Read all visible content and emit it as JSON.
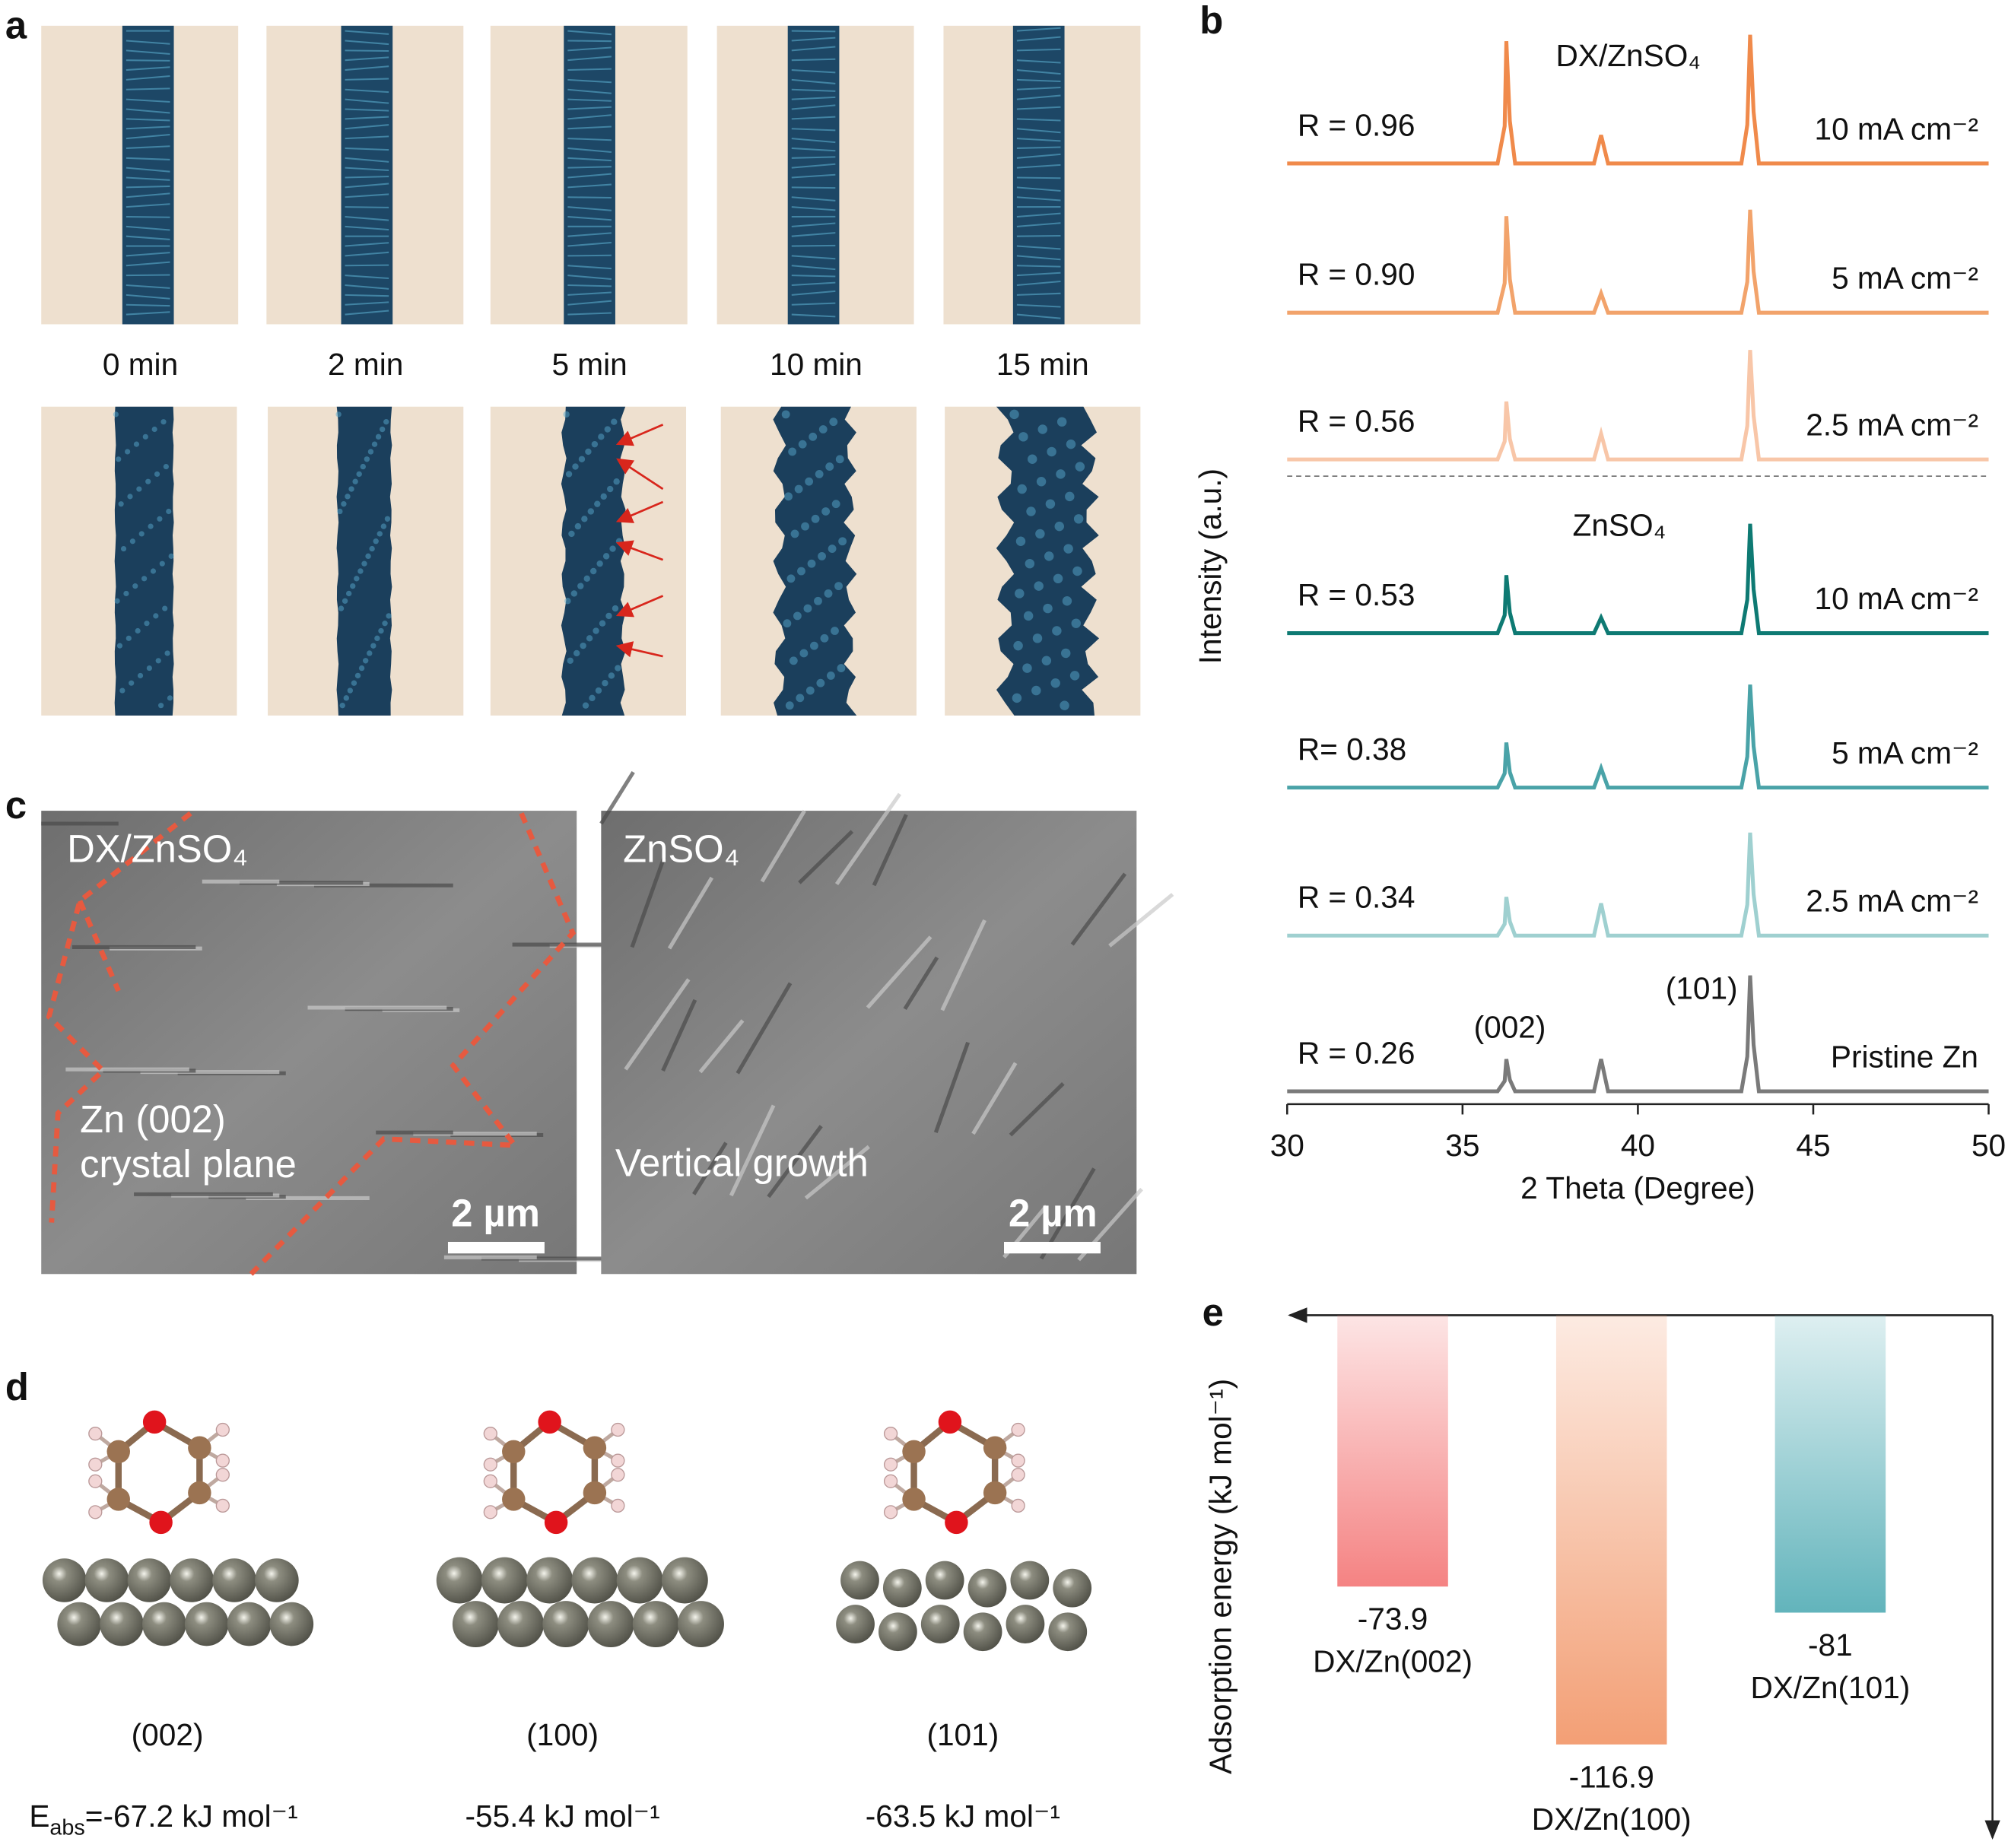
{
  "panels": {
    "a": {
      "label": "a",
      "times": [
        "0 min",
        "2 min",
        "5 min",
        "10 min",
        "15 min"
      ]
    },
    "c": {
      "label": "c",
      "left_electrolyte": "DX/ZnSO₄",
      "left_note": [
        "Zn (002)",
        "crystal plane"
      ],
      "right_electrolyte": "ZnSO₄",
      "right_note": "Vertical growth",
      "scale_bar": "2 µm"
    },
    "d": {
      "label": "d",
      "facets": [
        "(002)",
        "(100)",
        "(101)"
      ],
      "energies": [
        {
          "symbol": "E",
          "subscript": "abs",
          "text": "=-67.2 kJ mol⁻¹"
        },
        {
          "text": "-55.4 kJ mol⁻¹"
        },
        {
          "text": "-63.5 kJ mol⁻¹"
        }
      ]
    }
  },
  "chart_data": [
    {
      "type": "line",
      "label": "b",
      "xlabel": "2 Theta (Degree)",
      "ylabel": "Intensity (a.u.)",
      "xlim": [
        30,
        50
      ],
      "xticks": [
        30,
        35,
        40,
        45,
        50
      ],
      "ylim": [
        0,
        110
      ],
      "x": [
        30,
        36.0,
        36.2,
        36.25,
        36.35,
        36.5,
        38.75,
        38.95,
        39.15,
        42.95,
        43.12,
        43.2,
        43.3,
        43.45,
        50
      ],
      "annotations": [
        "DX/ZnSO₄",
        "ZnSO₄",
        "(002)",
        "(101)"
      ],
      "series": [
        {
          "name": "10 mA cm⁻²",
          "r_label": "R = 0.96",
          "color": "#f08a4b",
          "values": [
            0,
            0,
            29,
            95,
            33,
            0,
            0,
            22,
            0,
            0,
            30,
            100,
            40,
            0,
            0
          ]
        },
        {
          "name": "5 mA cm⁻²",
          "r_label": "R = 0.90",
          "color": "#f2a36b",
          "values": [
            0,
            0,
            23,
            75,
            26,
            0,
            0,
            15,
            0,
            0,
            24,
            80,
            32,
            0,
            0
          ]
        },
        {
          "name": "2.5 mA cm⁻²",
          "r_label": "R = 0.56",
          "color": "#f8c6a8",
          "values": [
            0,
            0,
            14,
            45,
            16,
            0,
            0,
            20,
            0,
            0,
            26,
            85,
            34,
            0,
            0
          ]
        },
        {
          "name": "10 mA cm⁻²",
          "r_label": "R = 0.53",
          "color": "#0e7a73",
          "values": [
            0,
            0,
            14,
            45,
            16,
            0,
            0,
            12,
            0,
            0,
            26,
            85,
            34,
            0,
            0
          ]
        },
        {
          "name": "5 mA cm⁻²",
          "r_label": "R= 0.38",
          "color": "#4aa3a8",
          "values": [
            0,
            0,
            11,
            35,
            12,
            0,
            0,
            15,
            0,
            0,
            24,
            80,
            32,
            0,
            0
          ]
        },
        {
          "name": "2.5 mA cm⁻²",
          "r_label": "R = 0.34",
          "color": "#9fd0d0",
          "values": [
            0,
            0,
            9,
            30,
            11,
            0,
            0,
            25,
            0,
            0,
            24,
            80,
            32,
            0,
            0
          ]
        },
        {
          "name": "Pristine Zn",
          "r_label": "R = 0.26",
          "color": "#7a7a7a",
          "values": [
            0,
            0,
            8,
            25,
            9,
            0,
            0,
            25,
            0,
            0,
            27,
            90,
            36,
            0,
            0
          ]
        }
      ]
    },
    {
      "type": "bar",
      "label": "e",
      "ylabel": "Adsorption energy (kJ mol⁻¹)",
      "categories": [
        "DX/Zn(002)",
        "DX/Zn(100)",
        "DX/Zn(101)"
      ],
      "values": [
        -73.9,
        -116.9,
        -81
      ],
      "colors": [
        "#f47c7c",
        "#f29a6e",
        "#5ab0b8"
      ],
      "ylim": [
        -143,
        0
      ]
    }
  ]
}
